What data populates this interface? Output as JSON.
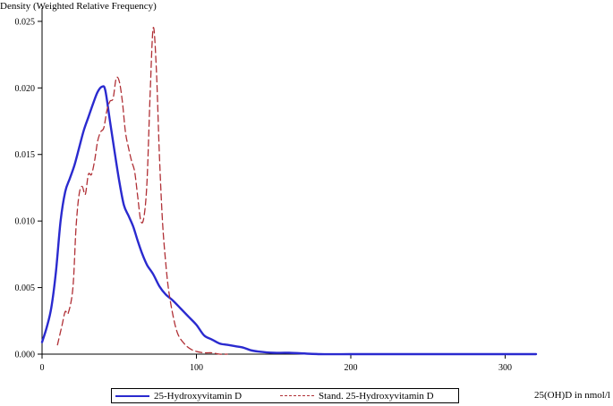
{
  "colors": {
    "series1": "#2a2acf",
    "series2": "#b03036",
    "axis": "#000000"
  },
  "chart_data": {
    "type": "line",
    "title": "",
    "ylabel": "Density (Weighted Relative Frequency)",
    "xlabel": "25(OH)D in nmol/l",
    "xlim": [
      0,
      320
    ],
    "ylim": [
      0,
      0.026
    ],
    "xticks": [
      0,
      100,
      200,
      300
    ],
    "yticks": [
      0.0,
      0.005,
      0.01,
      0.015,
      0.02,
      0.025
    ],
    "ytick_labels": [
      "0.000",
      "0.005",
      "0.010",
      "0.015",
      "0.020",
      "0.025"
    ],
    "grid": false,
    "legend": "bottom",
    "series": [
      {
        "name": "25-Hydroxyvitamin D",
        "style": "solid",
        "x": [
          0,
          3,
          6,
          9,
          12,
          15,
          18,
          21,
          24,
          27,
          30,
          33,
          36,
          39,
          41,
          44,
          47,
          50,
          53,
          56,
          59,
          62,
          65,
          68,
          72,
          76,
          80,
          85,
          90,
          95,
          100,
          105,
          110,
          115,
          120,
          125,
          130,
          135,
          140,
          150,
          160,
          180,
          200,
          250,
          320
        ],
        "y": [
          0.0009,
          0.002,
          0.0035,
          0.0062,
          0.01,
          0.0122,
          0.0132,
          0.0142,
          0.0155,
          0.0168,
          0.0178,
          0.0188,
          0.0197,
          0.0201,
          0.0198,
          0.0175,
          0.0152,
          0.013,
          0.0112,
          0.0104,
          0.0096,
          0.0085,
          0.0075,
          0.0067,
          0.006,
          0.0051,
          0.0045,
          0.004,
          0.0034,
          0.0028,
          0.0022,
          0.0014,
          0.0011,
          0.0008,
          0.0007,
          0.0006,
          0.0005,
          0.0003,
          0.0002,
          0.0001,
          0.0001,
          0.0,
          0.0,
          0.0,
          0.0
        ]
      },
      {
        "name": "Stand. 25-Hydroxyvitamin D",
        "style": "dashed",
        "x": [
          10,
          13,
          15,
          17,
          20,
          22,
          24,
          26,
          28,
          30,
          32,
          34,
          36,
          38,
          40,
          42,
          44,
          46,
          48,
          50,
          52,
          54,
          56,
          58,
          60,
          62,
          64,
          66,
          68,
          70,
          72,
          74,
          76,
          78,
          80,
          82,
          85,
          88,
          92,
          96,
          100,
          105,
          110,
          115,
          120
        ],
        "y": [
          0.0007,
          0.0022,
          0.0032,
          0.0031,
          0.005,
          0.0095,
          0.012,
          0.0126,
          0.012,
          0.0135,
          0.0135,
          0.0145,
          0.016,
          0.0167,
          0.017,
          0.0183,
          0.019,
          0.0192,
          0.0207,
          0.0205,
          0.019,
          0.0167,
          0.0155,
          0.0145,
          0.0137,
          0.0118,
          0.01,
          0.0103,
          0.013,
          0.0195,
          0.0245,
          0.0215,
          0.015,
          0.01,
          0.007,
          0.0048,
          0.0028,
          0.0015,
          0.0008,
          0.0004,
          0.0002,
          0.0001,
          0.0001,
          0.0,
          0.0
        ]
      }
    ]
  }
}
